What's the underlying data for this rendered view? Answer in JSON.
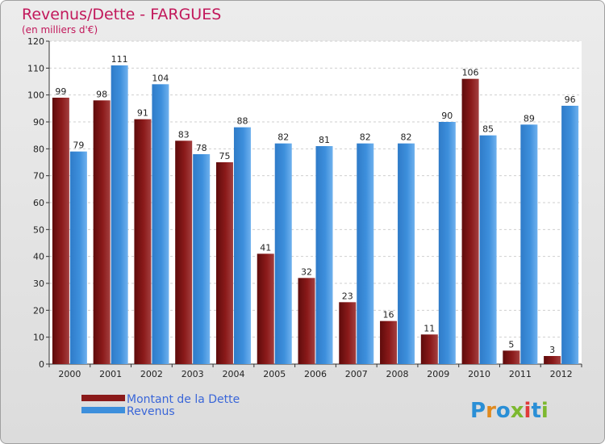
{
  "chart_data": {
    "type": "bar",
    "title": "Revenus/Dette - FARGUES",
    "subtitle": "(en milliers d'€)",
    "categories": [
      "2000",
      "2001",
      "2002",
      "2003",
      "2004",
      "2005",
      "2006",
      "2007",
      "2008",
      "2009",
      "2010",
      "2011",
      "2012"
    ],
    "series": [
      {
        "name": "Montant de la Dette",
        "color": "#8b1a1a",
        "values": [
          99,
          98,
          91,
          83,
          75,
          41,
          32,
          23,
          16,
          11,
          106,
          5,
          3
        ]
      },
      {
        "name": "Revenus",
        "color": "#3d8fdc",
        "values": [
          79,
          111,
          104,
          78,
          88,
          82,
          81,
          82,
          82,
          90,
          85,
          89,
          96
        ]
      }
    ],
    "ylim": [
      0,
      120
    ],
    "yticks": [
      0,
      10,
      20,
      30,
      40,
      50,
      60,
      70,
      80,
      90,
      100,
      110,
      120
    ],
    "grid": true,
    "legend": "bottom-left"
  },
  "logo": {
    "text": "Proxiti"
  }
}
